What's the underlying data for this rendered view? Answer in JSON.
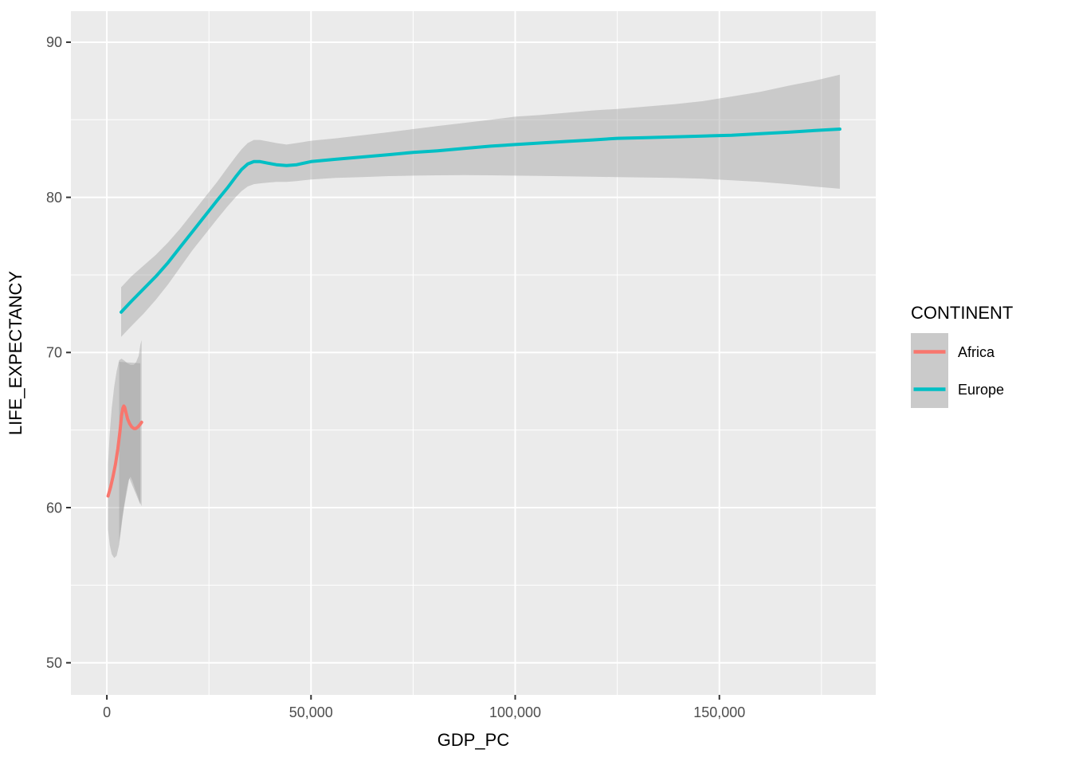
{
  "chart_data": {
    "type": "line",
    "title": "",
    "xlabel": "GDP_PC",
    "ylabel": "LIFE_EXPECTANCY",
    "grid": true,
    "panel_bg": "#EBEBEB",
    "grid_color": "#FFFFFF",
    "ribbon_fill": "rgba(153,153,153,0.4)",
    "tick_label_color": "#4D4D4D",
    "tick_mark_color": "#333333",
    "axis_title_color": "#000000",
    "x_axis": {
      "range": [
        -8800,
        188300
      ],
      "ticks": [
        {
          "value": 0,
          "label": "0"
        },
        {
          "value": 50000,
          "label": "50,000"
        },
        {
          "value": 100000,
          "label": "100,000"
        },
        {
          "value": 150000,
          "label": "150,000"
        }
      ],
      "minor_ticks": [
        25000,
        75000,
        125000,
        175000
      ]
    },
    "y_axis": {
      "range": [
        47.93,
        92.0
      ],
      "ticks": [
        {
          "value": 50,
          "label": "50"
        },
        {
          "value": 60,
          "label": "60"
        },
        {
          "value": 70,
          "label": "70"
        },
        {
          "value": 80,
          "label": "80"
        },
        {
          "value": 90,
          "label": "90"
        }
      ],
      "minor_ticks": [
        55,
        65,
        75,
        85
      ]
    },
    "legend": {
      "title": "CONTINENT",
      "position": "right",
      "key_bg": "#CACACA",
      "entries": [
        {
          "label": "Africa",
          "color": "#F8766D"
        },
        {
          "label": "Europe",
          "color": "#00BFC4"
        }
      ]
    },
    "series": [
      {
        "name": "Africa",
        "color": "#F8766D",
        "smooth": [
          [
            300,
            60.75
          ],
          [
            900,
            61.3
          ],
          [
            1500,
            62.0
          ],
          [
            2100,
            62.8
          ],
          [
            2700,
            63.8
          ],
          [
            3200,
            64.9
          ],
          [
            3600,
            65.9
          ],
          [
            3900,
            66.4
          ],
          [
            4150,
            66.55
          ],
          [
            4400,
            66.45
          ],
          [
            4700,
            66.1
          ],
          [
            5100,
            65.7
          ],
          [
            5600,
            65.4
          ],
          [
            6100,
            65.2
          ],
          [
            6600,
            65.1
          ],
          [
            7100,
            65.1
          ],
          [
            7600,
            65.2
          ],
          [
            8100,
            65.35
          ],
          [
            8500,
            65.5
          ]
        ],
        "ci_upper": [
          [
            300,
            62.8
          ],
          [
            700,
            64.8
          ],
          [
            1200,
            66.4
          ],
          [
            1800,
            67.8
          ],
          [
            2400,
            68.8
          ],
          [
            3000,
            69.5
          ],
          [
            3600,
            69.6
          ],
          [
            4200,
            69.5
          ],
          [
            5000,
            69.3
          ],
          [
            5800,
            69.2
          ],
          [
            6600,
            69.2
          ],
          [
            7200,
            69.4
          ],
          [
            7800,
            69.8
          ],
          [
            8200,
            70.5
          ],
          [
            8500,
            70.8
          ]
        ],
        "ci_lower": [
          [
            300,
            58.6
          ],
          [
            700,
            57.6
          ],
          [
            1200,
            57.0
          ],
          [
            1800,
            56.75
          ],
          [
            2400,
            56.9
          ],
          [
            3000,
            57.6
          ],
          [
            3600,
            58.8
          ],
          [
            4200,
            60.1
          ],
          [
            4800,
            61.1
          ],
          [
            5300,
            61.75
          ],
          [
            5800,
            62.0
          ],
          [
            6300,
            61.7
          ],
          [
            6900,
            61.2
          ],
          [
            7500,
            60.8
          ],
          [
            8000,
            60.4
          ],
          [
            8500,
            60.1
          ]
        ],
        "ci_inner": [
          [
            3000,
            69.4
          ],
          [
            8200,
            69.3
          ],
          [
            8200,
            60.2
          ],
          [
            5500,
            61.9
          ],
          [
            3800,
            59.4
          ],
          [
            3000,
            57.8
          ]
        ]
      },
      {
        "name": "Europe",
        "color": "#00BFC4",
        "smooth": [
          [
            3500,
            72.6
          ],
          [
            6000,
            73.3
          ],
          [
            9000,
            74.1
          ],
          [
            12000,
            74.9
          ],
          [
            15000,
            75.8
          ],
          [
            18000,
            76.8
          ],
          [
            21000,
            77.8
          ],
          [
            24000,
            78.8
          ],
          [
            27000,
            79.8
          ],
          [
            29500,
            80.6
          ],
          [
            31500,
            81.3
          ],
          [
            33000,
            81.8
          ],
          [
            34500,
            82.15
          ],
          [
            36000,
            82.3
          ],
          [
            37500,
            82.3
          ],
          [
            39500,
            82.2
          ],
          [
            41500,
            82.1
          ],
          [
            44000,
            82.05
          ],
          [
            46500,
            82.1
          ],
          [
            50000,
            82.3
          ],
          [
            56000,
            82.45
          ],
          [
            62500,
            82.6
          ],
          [
            69000,
            82.75
          ],
          [
            75000,
            82.9
          ],
          [
            81000,
            83.0
          ],
          [
            87500,
            83.15
          ],
          [
            94000,
            83.3
          ],
          [
            100000,
            83.4
          ],
          [
            106000,
            83.5
          ],
          [
            112500,
            83.6
          ],
          [
            119000,
            83.7
          ],
          [
            125000,
            83.8
          ],
          [
            132000,
            83.85
          ],
          [
            139000,
            83.9
          ],
          [
            146000,
            83.95
          ],
          [
            153000,
            84.0
          ],
          [
            160000,
            84.1
          ],
          [
            167000,
            84.2
          ],
          [
            173000,
            84.3
          ],
          [
            179500,
            84.4
          ]
        ],
        "ci_upper": [
          [
            3500,
            74.2
          ],
          [
            6000,
            74.9
          ],
          [
            9000,
            75.6
          ],
          [
            12000,
            76.3
          ],
          [
            15000,
            77.1
          ],
          [
            18000,
            78.0
          ],
          [
            21000,
            79.0
          ],
          [
            24000,
            80.0
          ],
          [
            27000,
            81.0
          ],
          [
            29500,
            81.9
          ],
          [
            31500,
            82.6
          ],
          [
            33000,
            83.1
          ],
          [
            34500,
            83.5
          ],
          [
            36000,
            83.7
          ],
          [
            37500,
            83.7
          ],
          [
            39500,
            83.6
          ],
          [
            41500,
            83.5
          ],
          [
            44000,
            83.4
          ],
          [
            46500,
            83.5
          ],
          [
            50000,
            83.65
          ],
          [
            56000,
            83.8
          ],
          [
            62500,
            84.0
          ],
          [
            69000,
            84.2
          ],
          [
            75000,
            84.4
          ],
          [
            81000,
            84.6
          ],
          [
            87500,
            84.8
          ],
          [
            94000,
            85.0
          ],
          [
            100000,
            85.2
          ],
          [
            106000,
            85.3
          ],
          [
            112500,
            85.45
          ],
          [
            119000,
            85.6
          ],
          [
            125000,
            85.7
          ],
          [
            132000,
            85.85
          ],
          [
            139000,
            86.0
          ],
          [
            146000,
            86.2
          ],
          [
            153000,
            86.5
          ],
          [
            160000,
            86.8
          ],
          [
            167000,
            87.2
          ],
          [
            173000,
            87.5
          ],
          [
            179500,
            87.9
          ]
        ],
        "ci_lower": [
          [
            3500,
            71.0
          ],
          [
            6000,
            71.7
          ],
          [
            9000,
            72.5
          ],
          [
            12000,
            73.4
          ],
          [
            15000,
            74.4
          ],
          [
            18000,
            75.5
          ],
          [
            21000,
            76.6
          ],
          [
            24000,
            77.6
          ],
          [
            27000,
            78.6
          ],
          [
            29500,
            79.4
          ],
          [
            31500,
            80.0
          ],
          [
            33000,
            80.4
          ],
          [
            34500,
            80.7
          ],
          [
            36000,
            80.85
          ],
          [
            37500,
            80.9
          ],
          [
            39500,
            80.95
          ],
          [
            41500,
            81.0
          ],
          [
            44000,
            81.0
          ],
          [
            46500,
            81.05
          ],
          [
            50000,
            81.15
          ],
          [
            56000,
            81.25
          ],
          [
            62500,
            81.3
          ],
          [
            69000,
            81.37
          ],
          [
            75000,
            81.4
          ],
          [
            81000,
            81.42
          ],
          [
            87500,
            81.43
          ],
          [
            94000,
            81.42
          ],
          [
            100000,
            81.4
          ],
          [
            106000,
            81.38
          ],
          [
            112500,
            81.35
          ],
          [
            119000,
            81.33
          ],
          [
            125000,
            81.3
          ],
          [
            132000,
            81.28
          ],
          [
            139000,
            81.25
          ],
          [
            146000,
            81.2
          ],
          [
            153000,
            81.1
          ],
          [
            160000,
            81.0
          ],
          [
            167000,
            80.85
          ],
          [
            173000,
            80.7
          ],
          [
            179500,
            80.55
          ]
        ]
      }
    ]
  }
}
